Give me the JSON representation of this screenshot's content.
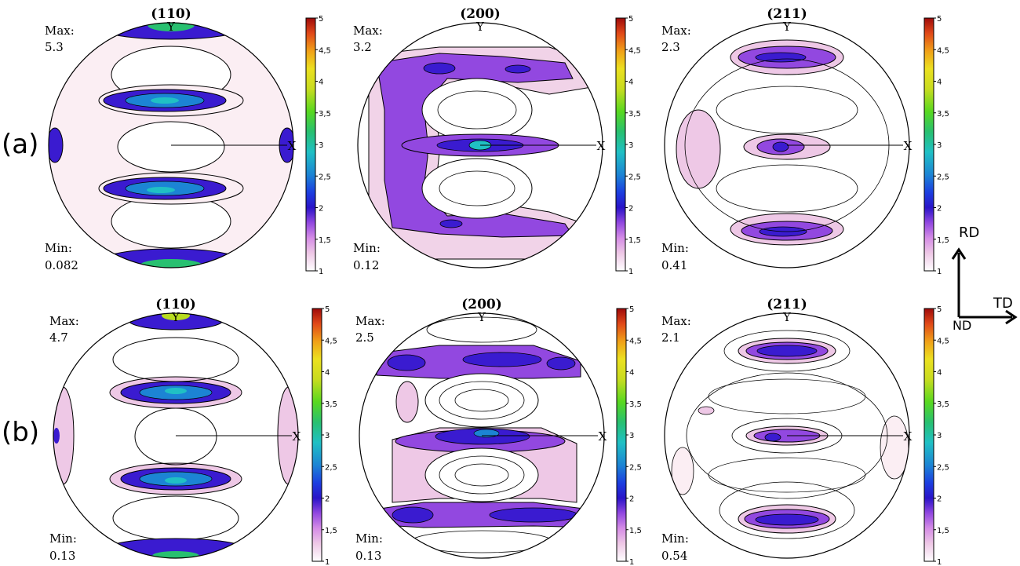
{
  "row_labels": [
    "(a)",
    "(b)"
  ],
  "axis_labels": {
    "x": "X",
    "y": "Y"
  },
  "stat_labels": {
    "max": "Max:",
    "min": "Min:"
  },
  "colorbar_ticks": [
    "5",
    "4,5",
    "4",
    "3,5",
    "3",
    "2,5",
    "2",
    "1,5",
    "1"
  ],
  "colorbar_colors": [
    "#ffffff",
    "#eec8e6",
    "#d58de6",
    "#9248e0",
    "#3a1bd0",
    "#1a3ee0",
    "#1c84d4",
    "#20c0c4",
    "#28c070",
    "#58d820",
    "#b8dc20",
    "#ece020",
    "#f0a018",
    "#e85018",
    "#d01c18",
    "#9e0a0a"
  ],
  "direction_arrows": {
    "vertical": "RD",
    "horizontal": "TD",
    "origin": "ND"
  },
  "figures": [
    [
      {
        "title": "(110)",
        "max": "5.3",
        "min": "0.082"
      },
      {
        "title": "(200)",
        "max": "3.2",
        "min": "0.12"
      },
      {
        "title": "(211)",
        "max": "2.3",
        "min": "0.41"
      }
    ],
    [
      {
        "title": "(110)",
        "max": "4.7",
        "min": "0.13"
      },
      {
        "title": "(200)",
        "max": "2.5",
        "min": "0.13"
      },
      {
        "title": "(211)",
        "max": "2.1",
        "min": "0.54"
      }
    ]
  ]
}
